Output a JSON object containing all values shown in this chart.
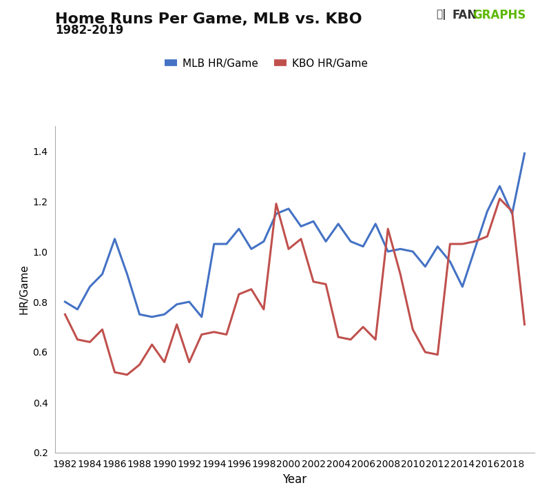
{
  "title_line1": "Home Runs Per Game, MLB vs. KBO",
  "title_line2": "1982-2019",
  "xlabel": "Year",
  "ylabel": "HR/Game",
  "mlb_label": "MLB HR/Game",
  "kbo_label": "KBO HR/Game",
  "mlb_color": "#4472C4",
  "kbo_color": "#C0504D",
  "years": [
    1982,
    1983,
    1984,
    1985,
    1986,
    1987,
    1988,
    1989,
    1990,
    1991,
    1992,
    1993,
    1994,
    1995,
    1996,
    1997,
    1998,
    1999,
    2000,
    2001,
    2002,
    2003,
    2004,
    2005,
    2006,
    2007,
    2008,
    2009,
    2010,
    2011,
    2012,
    2013,
    2014,
    2015,
    2016,
    2017,
    2018,
    2019
  ],
  "mlb": [
    0.8,
    0.77,
    0.86,
    0.91,
    1.05,
    0.91,
    0.75,
    0.74,
    0.75,
    0.79,
    0.8,
    0.74,
    1.03,
    1.03,
    1.09,
    1.01,
    1.04,
    1.15,
    1.17,
    1.1,
    1.12,
    1.04,
    1.11,
    1.04,
    1.02,
    1.11,
    1.0,
    1.01,
    1.0,
    0.94,
    1.02,
    0.96,
    0.86,
    1.01,
    1.16,
    1.26,
    1.15,
    1.39
  ],
  "kbo": [
    0.75,
    0.65,
    0.64,
    0.69,
    0.52,
    0.51,
    0.55,
    0.63,
    0.56,
    0.71,
    0.56,
    0.67,
    0.68,
    0.67,
    0.83,
    0.85,
    0.77,
    1.19,
    1.01,
    1.05,
    0.88,
    0.87,
    0.66,
    0.65,
    0.7,
    0.65,
    1.09,
    0.91,
    0.69,
    0.6,
    0.59,
    1.03,
    1.03,
    1.04,
    1.06,
    1.21,
    1.16,
    0.71
  ],
  "ylim": [
    0.2,
    1.5
  ],
  "yticks": [
    0.2,
    0.4,
    0.6,
    0.8,
    1.0,
    1.2,
    1.4
  ],
  "logo_color_dark": "#333333",
  "logo_color_green": "#5cb800",
  "background_color": "#ffffff",
  "linewidth": 2.2
}
